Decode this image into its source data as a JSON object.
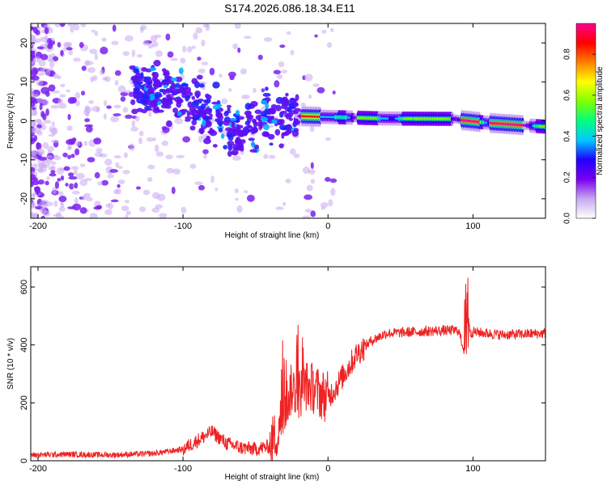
{
  "figure": {
    "title": "S174.2026.086.18.34.E11"
  },
  "chart_data": [
    {
      "type": "heatmap",
      "description_role": "spectrogram",
      "xlabel": "Height of straight line (km)",
      "ylabel": "Frequency (Hz)",
      "xlim": [
        -205,
        150
      ],
      "ylim": [
        -25,
        25
      ],
      "xticks": [
        "-200",
        "-100",
        "0",
        "100"
      ],
      "xtick_values": [
        -200,
        -100,
        0,
        100
      ],
      "yticks": [
        "-20",
        "-10",
        "0",
        "10",
        "20"
      ],
      "ytick_values": [
        -20,
        -10,
        0,
        10,
        20
      ],
      "colorbar": {
        "label": "Normalized spectral amplitude",
        "range": [
          0,
          0.95
        ],
        "ticks": [
          "0.0",
          "0.2",
          "0.4",
          "0.6",
          "0.8"
        ],
        "tick_values": [
          0.0,
          0.2,
          0.4,
          0.6,
          0.8
        ],
        "colormap": [
          "#ffffff",
          "#c8a8f0",
          "#7a00f0",
          "#2000ff",
          "#00c8ff",
          "#00ff80",
          "#80ff00",
          "#ffff00",
          "#ff8000",
          "#ff0000",
          "#ff0090"
        ]
      },
      "carrier_track": [
        {
          "x": -20,
          "y": 1.2
        },
        {
          "x": 0,
          "y": 1.0
        },
        {
          "x": 40,
          "y": 0.6
        },
        {
          "x": 88,
          "y": 0.5
        },
        {
          "x": 92,
          "y": 0.2
        },
        {
          "x": 110,
          "y": -0.5
        },
        {
          "x": 150,
          "y": -1.5
        }
      ],
      "scatter_track": [
        {
          "x": -130,
          "y": 8
        },
        {
          "x": -100,
          "y": 7
        },
        {
          "x": -80,
          "y": 1
        },
        {
          "x": -60,
          "y": -2
        },
        {
          "x": -40,
          "y": 1
        },
        {
          "x": -25,
          "y": 2
        }
      ]
    },
    {
      "type": "line",
      "xlabel": "Height of straight line (km)",
      "ylabel": "SNR (10 * v/v)",
      "xlim": [
        -205,
        150
      ],
      "ylim": [
        0,
        670
      ],
      "xticks": [
        "-200",
        "-100",
        "0",
        "100"
      ],
      "xtick_values": [
        -200,
        -100,
        0,
        100
      ],
      "yticks": [
        "0",
        "200",
        "400",
        "600"
      ],
      "ytick_values": [
        0,
        200,
        400,
        600
      ],
      "series": [
        {
          "name": "SNR",
          "color": "#ee2222",
          "x": [
            -205,
            -180,
            -150,
            -120,
            -100,
            -90,
            -80,
            -70,
            -60,
            -50,
            -40,
            -35,
            -30,
            -25,
            -20,
            -15,
            -10,
            -5,
            0,
            5,
            10,
            20,
            30,
            40,
            60,
            80,
            90,
            94,
            96,
            98,
            100,
            120,
            150
          ],
          "y": [
            20,
            22,
            20,
            25,
            40,
            70,
            100,
            60,
            45,
            40,
            50,
            100,
            180,
            250,
            230,
            260,
            250,
            230,
            220,
            250,
            290,
            370,
            415,
            440,
            445,
            450,
            450,
            380,
            560,
            440,
            445,
            435,
            440
          ]
        }
      ]
    }
  ]
}
